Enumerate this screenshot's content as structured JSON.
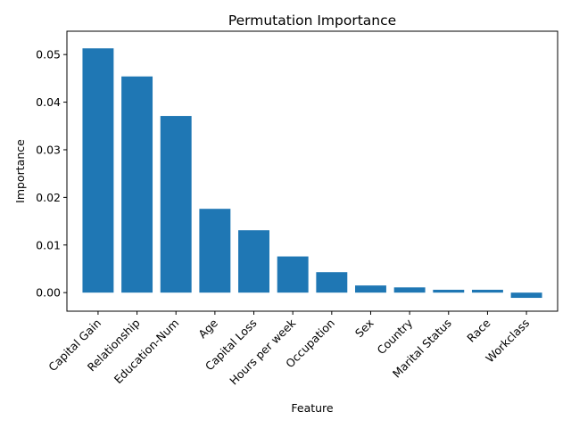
{
  "chart_data": {
    "type": "bar",
    "title": "Permutation Importance",
    "xlabel": "Feature",
    "ylabel": "Importance",
    "categories": [
      "Capital Gain",
      "Relationship",
      "Education-Num",
      "Age",
      "Capital Loss",
      "Hours per week",
      "Occupation",
      "Sex",
      "Country",
      "Marital Status",
      "Race",
      "Workclass"
    ],
    "values": [
      0.0513,
      0.0454,
      0.0371,
      0.0176,
      0.0131,
      0.0076,
      0.0043,
      0.0015,
      0.0011,
      0.0006,
      0.0006,
      -0.0011
    ],
    "yticks": [
      "0.00",
      "0.01",
      "0.02",
      "0.03",
      "0.04",
      "0.05"
    ],
    "ytick_values": [
      0,
      0.01,
      0.02,
      0.03,
      0.04,
      0.05
    ],
    "ylim": [
      -0.0039,
      0.0549
    ],
    "bar_color": "#1f77b4",
    "grid": false,
    "legend": "none"
  }
}
